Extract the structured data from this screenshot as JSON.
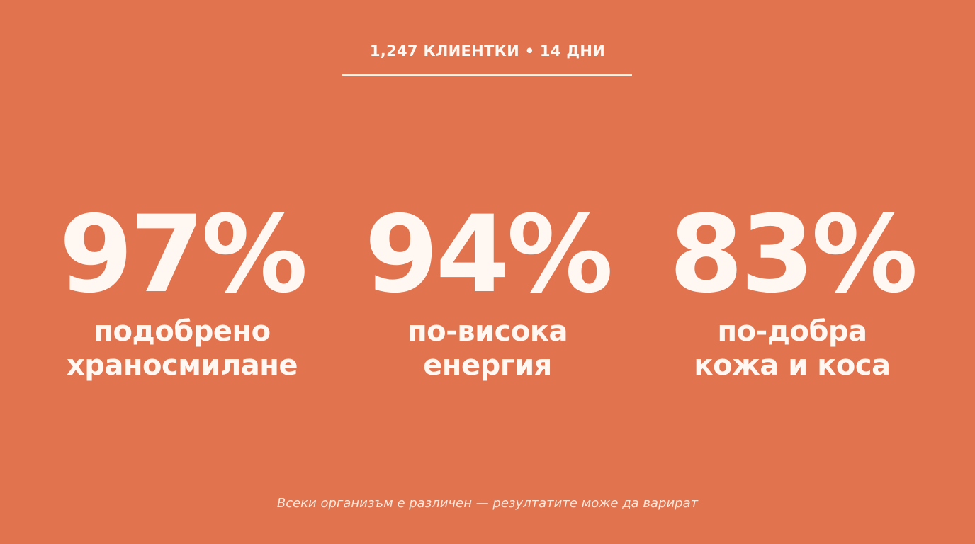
{
  "header": {
    "subtitle": "1,247 КЛИЕНТКИ • 14 ДНИ"
  },
  "stats": [
    {
      "value": "97%",
      "label_line1": "подобрено",
      "label_line2": "храносмилане"
    },
    {
      "value": "94%",
      "label_line1": "по-висока",
      "label_line2": "енергия"
    },
    {
      "value": "83%",
      "label_line1": "по-добра",
      "label_line2": "кожа и коса"
    }
  ],
  "footer": {
    "disclaimer": "Всеки организъм е различен — резултатите може да варират"
  },
  "colors": {
    "background": "#e2734f",
    "text": "#fff8f2"
  }
}
